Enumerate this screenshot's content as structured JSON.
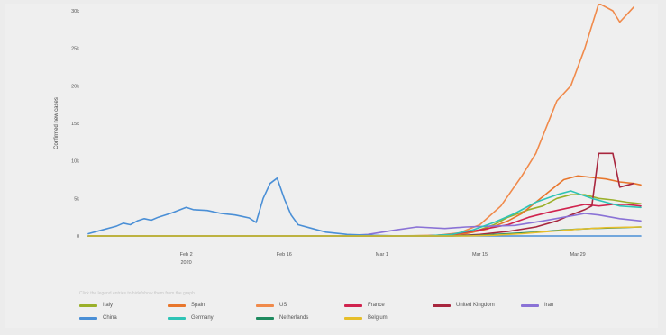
{
  "note": "Click the legend entries to hide/show them from the graph",
  "chart_data": {
    "type": "line",
    "ylabel": "Confirmed new cases",
    "ylim": [
      0,
      30000
    ],
    "yticks": [
      {
        "value": 0,
        "label": "0"
      },
      {
        "value": 5000,
        "label": "5k"
      },
      {
        "value": 10000,
        "label": "10k"
      },
      {
        "value": 15000,
        "label": "15k"
      },
      {
        "value": 20000,
        "label": "20k"
      },
      {
        "value": 25000,
        "label": "25k"
      },
      {
        "value": 30000,
        "label": "30k"
      }
    ],
    "xticks": [
      {
        "day": 14,
        "label": "Feb 2",
        "sublabel": "2020"
      },
      {
        "day": 28,
        "label": "Feb 16",
        "sublabel": ""
      },
      {
        "day": 42,
        "label": "Mar 1",
        "sublabel": ""
      },
      {
        "day": 56,
        "label": "Mar 15",
        "sublabel": ""
      },
      {
        "day": 70,
        "label": "Mar 29",
        "sublabel": ""
      }
    ],
    "x_range_days": [
      0,
      79
    ],
    "grid": false,
    "legend_position": "bottom",
    "series": [
      {
        "name": "Italy",
        "color": "#9ab02a",
        "points": [
          [
            0,
            0
          ],
          [
            40,
            0
          ],
          [
            50,
            50
          ],
          [
            55,
            500
          ],
          [
            58,
            1500
          ],
          [
            60,
            2500
          ],
          [
            63,
            3500
          ],
          [
            65,
            4000
          ],
          [
            67,
            5000
          ],
          [
            69,
            5500
          ],
          [
            71,
            5500
          ],
          [
            73,
            5000
          ],
          [
            75,
            4800
          ],
          [
            77,
            4500
          ],
          [
            79,
            4300
          ]
        ]
      },
      {
        "name": "Spain",
        "color": "#e8762c",
        "points": [
          [
            0,
            0
          ],
          [
            50,
            0
          ],
          [
            54,
            300
          ],
          [
            57,
            900
          ],
          [
            60,
            2000
          ],
          [
            62,
            3000
          ],
          [
            64,
            4500
          ],
          [
            66,
            6000
          ],
          [
            68,
            7500
          ],
          [
            70,
            8000
          ],
          [
            72,
            7800
          ],
          [
            74,
            7600
          ],
          [
            76,
            7200
          ],
          [
            78,
            7000
          ],
          [
            79,
            6800
          ]
        ]
      },
      {
        "name": "US",
        "color": "#f08a4b",
        "points": [
          [
            0,
            0
          ],
          [
            45,
            0
          ],
          [
            50,
            100
          ],
          [
            53,
            400
          ],
          [
            56,
            1500
          ],
          [
            59,
            4000
          ],
          [
            62,
            8000
          ],
          [
            64,
            11000
          ],
          [
            67,
            18000
          ],
          [
            69,
            20000
          ],
          [
            71,
            25000
          ],
          [
            73,
            31000
          ],
          [
            75,
            30000
          ],
          [
            76,
            28500
          ],
          [
            77,
            29500
          ],
          [
            78,
            30500
          ]
        ]
      },
      {
        "name": "France",
        "color": "#d0234e",
        "points": [
          [
            0,
            0
          ],
          [
            48,
            0
          ],
          [
            52,
            200
          ],
          [
            56,
            800
          ],
          [
            60,
            1500
          ],
          [
            63,
            2500
          ],
          [
            66,
            3200
          ],
          [
            69,
            3800
          ],
          [
            71,
            4200
          ],
          [
            73,
            4000
          ],
          [
            75,
            4200
          ],
          [
            77,
            4200
          ],
          [
            79,
            4000
          ]
        ]
      },
      {
        "name": "United Kingdom",
        "color": "#a8263e",
        "points": [
          [
            0,
            0
          ],
          [
            52,
            0
          ],
          [
            56,
            200
          ],
          [
            60,
            600
          ],
          [
            64,
            1200
          ],
          [
            67,
            2000
          ],
          [
            69,
            2800
          ],
          [
            71,
            3500
          ],
          [
            72,
            4000
          ],
          [
            73,
            11000
          ],
          [
            75,
            11000
          ],
          [
            76,
            6500
          ],
          [
            78,
            7000
          ]
        ]
      },
      {
        "name": "Iran",
        "color": "#8a72d6",
        "points": [
          [
            0,
            0
          ],
          [
            36,
            0
          ],
          [
            40,
            200
          ],
          [
            44,
            800
          ],
          [
            47,
            1200
          ],
          [
            51,
            1000
          ],
          [
            54,
            1200
          ],
          [
            57,
            1300
          ],
          [
            61,
            1400
          ],
          [
            65,
            2000
          ],
          [
            68,
            2500
          ],
          [
            71,
            3000
          ],
          [
            73,
            2800
          ],
          [
            76,
            2300
          ],
          [
            79,
            2000
          ]
        ]
      },
      {
        "name": "China",
        "color": "#4a8fd6",
        "points": [
          [
            0,
            300
          ],
          [
            2,
            800
          ],
          [
            4,
            1300
          ],
          [
            5,
            1700
          ],
          [
            6,
            1500
          ],
          [
            7,
            2000
          ],
          [
            8,
            2300
          ],
          [
            9,
            2100
          ],
          [
            10,
            2500
          ],
          [
            12,
            3100
          ],
          [
            14,
            3800
          ],
          [
            15,
            3500
          ],
          [
            17,
            3400
          ],
          [
            19,
            3000
          ],
          [
            21,
            2800
          ],
          [
            22,
            2600
          ],
          [
            23,
            2400
          ],
          [
            24,
            1800
          ],
          [
            25,
            5000
          ],
          [
            26,
            7000
          ],
          [
            27,
            7700
          ],
          [
            28,
            5000
          ],
          [
            29,
            2800
          ],
          [
            30,
            1500
          ],
          [
            32,
            1000
          ],
          [
            34,
            500
          ],
          [
            37,
            200
          ],
          [
            40,
            100
          ],
          [
            45,
            0
          ],
          [
            79,
            0
          ]
        ]
      },
      {
        "name": "Germany",
        "color": "#2ec4b6",
        "points": [
          [
            0,
            0
          ],
          [
            48,
            0
          ],
          [
            52,
            200
          ],
          [
            55,
            800
          ],
          [
            58,
            1800
          ],
          [
            61,
            3000
          ],
          [
            64,
            4500
          ],
          [
            67,
            5500
          ],
          [
            69,
            6000
          ],
          [
            72,
            5000
          ],
          [
            74,
            4500
          ],
          [
            76,
            4000
          ],
          [
            79,
            3800
          ]
        ]
      },
      {
        "name": "Netherlands",
        "color": "#1e8a5f",
        "points": [
          [
            0,
            0
          ],
          [
            52,
            0
          ],
          [
            56,
            100
          ],
          [
            60,
            300
          ],
          [
            64,
            500
          ],
          [
            68,
            800
          ],
          [
            72,
            1000
          ],
          [
            76,
            1100
          ],
          [
            79,
            1200
          ]
        ]
      },
      {
        "name": "Belgium",
        "color": "#e6be2a",
        "points": [
          [
            0,
            0
          ],
          [
            54,
            0
          ],
          [
            58,
            100
          ],
          [
            62,
            300
          ],
          [
            66,
            600
          ],
          [
            70,
            900
          ],
          [
            74,
            1100
          ],
          [
            79,
            1200
          ]
        ]
      }
    ]
  }
}
